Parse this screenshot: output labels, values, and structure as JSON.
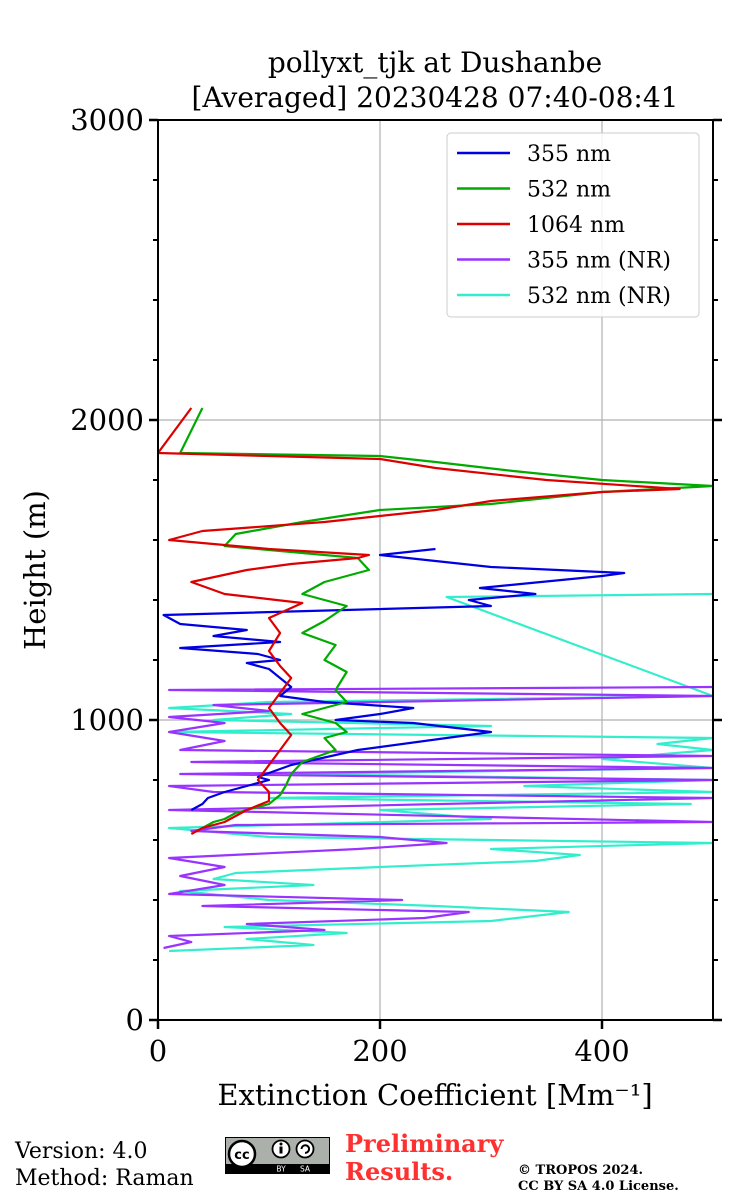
{
  "chart_data": {
    "type": "line",
    "title": [
      "pollyxt_tjk at Dushanbe",
      "[Averaged] 20230428 07:40-08:41"
    ],
    "xlabel": "Extinction Coefficient [Mm⁻¹]",
    "ylabel": "Height (m)",
    "xlim": [
      0,
      500
    ],
    "ylim": [
      0,
      3000
    ],
    "xticks": [
      "0",
      "200",
      "400"
    ],
    "yticks": [
      "0",
      "1000",
      "2000",
      "3000"
    ],
    "grid": true,
    "legend_position": "top-right",
    "series": [
      {
        "name": "355 nm",
        "color": "#0000e0",
        "points": [
          [
            30,
            700
          ],
          [
            40,
            720
          ],
          [
            45,
            740
          ],
          [
            60,
            760
          ],
          [
            80,
            780
          ],
          [
            100,
            800
          ],
          [
            90,
            810
          ],
          [
            120,
            850
          ],
          [
            180,
            900
          ],
          [
            300,
            960
          ],
          [
            230,
            990
          ],
          [
            160,
            1000
          ],
          [
            200,
            1020
          ],
          [
            230,
            1040
          ],
          [
            150,
            1060
          ],
          [
            110,
            1080
          ],
          [
            120,
            1110
          ],
          [
            110,
            1140
          ],
          [
            100,
            1170
          ],
          [
            80,
            1190
          ],
          [
            110,
            1200
          ],
          [
            90,
            1220
          ],
          [
            20,
            1240
          ],
          [
            110,
            1260
          ],
          [
            50,
            1280
          ],
          [
            80,
            1300
          ],
          [
            20,
            1320
          ],
          [
            5,
            1350
          ],
          [
            300,
            1380
          ],
          [
            280,
            1400
          ],
          [
            340,
            1420
          ],
          [
            290,
            1440
          ],
          [
            400,
            1480
          ],
          [
            420,
            1490
          ],
          [
            300,
            1510
          ],
          [
            250,
            1530
          ],
          [
            200,
            1550
          ],
          [
            250,
            1570
          ]
        ]
      },
      {
        "name": "532 nm",
        "color": "#00aa00",
        "points": [
          [
            40,
            640
          ],
          [
            50,
            660
          ],
          [
            60,
            670
          ],
          [
            70,
            690
          ],
          [
            80,
            700
          ],
          [
            100,
            720
          ],
          [
            110,
            750
          ],
          [
            115,
            780
          ],
          [
            120,
            820
          ],
          [
            130,
            860
          ],
          [
            160,
            900
          ],
          [
            150,
            940
          ],
          [
            170,
            960
          ],
          [
            160,
            990
          ],
          [
            130,
            1020
          ],
          [
            170,
            1060
          ],
          [
            160,
            1100
          ],
          [
            170,
            1160
          ],
          [
            150,
            1200
          ],
          [
            160,
            1250
          ],
          [
            130,
            1290
          ],
          [
            150,
            1330
          ],
          [
            170,
            1380
          ],
          [
            130,
            1420
          ],
          [
            150,
            1460
          ],
          [
            190,
            1500
          ],
          [
            180,
            1540
          ],
          [
            60,
            1580
          ],
          [
            70,
            1620
          ],
          [
            130,
            1660
          ],
          [
            200,
            1700
          ],
          [
            300,
            1720
          ],
          [
            400,
            1760
          ],
          [
            500,
            1780
          ],
          [
            400,
            1800
          ],
          [
            320,
            1830
          ],
          [
            250,
            1860
          ],
          [
            200,
            1880
          ],
          [
            20,
            1890
          ],
          [
            40,
            2040
          ]
        ]
      },
      {
        "name": "1064 nm",
        "color": "#dd0000",
        "points": [
          [
            30,
            620
          ],
          [
            40,
            640
          ],
          [
            60,
            660
          ],
          [
            70,
            680
          ],
          [
            80,
            700
          ],
          [
            100,
            730
          ],
          [
            100,
            760
          ],
          [
            90,
            800
          ],
          [
            100,
            850
          ],
          [
            110,
            900
          ],
          [
            120,
            950
          ],
          [
            110,
            990
          ],
          [
            100,
            1040
          ],
          [
            110,
            1090
          ],
          [
            120,
            1140
          ],
          [
            110,
            1180
          ],
          [
            100,
            1230
          ],
          [
            110,
            1290
          ],
          [
            100,
            1340
          ],
          [
            130,
            1390
          ],
          [
            60,
            1420
          ],
          [
            30,
            1460
          ],
          [
            80,
            1500
          ],
          [
            120,
            1520
          ],
          [
            180,
            1540
          ],
          [
            190,
            1550
          ],
          [
            100,
            1570
          ],
          [
            10,
            1600
          ],
          [
            40,
            1630
          ],
          [
            150,
            1660
          ],
          [
            250,
            1700
          ],
          [
            300,
            1730
          ],
          [
            400,
            1760
          ],
          [
            470,
            1770
          ],
          [
            350,
            1800
          ],
          [
            250,
            1840
          ],
          [
            200,
            1870
          ],
          [
            100,
            1880
          ],
          [
            0,
            1890
          ],
          [
            30,
            2040
          ]
        ]
      },
      {
        "name": "355 nm (NR)",
        "color": "#9933ff",
        "points": [
          [
            5,
            240
          ],
          [
            30,
            260
          ],
          [
            10,
            280
          ],
          [
            150,
            300
          ],
          [
            80,
            320
          ],
          [
            240,
            340
          ],
          [
            280,
            360
          ],
          [
            40,
            380
          ],
          [
            220,
            400
          ],
          [
            10,
            420
          ],
          [
            60,
            450
          ],
          [
            20,
            480
          ],
          [
            60,
            510
          ],
          [
            10,
            540
          ],
          [
            180,
            570
          ],
          [
            260,
            590
          ],
          [
            200,
            610
          ],
          [
            30,
            630
          ],
          [
            70,
            650
          ],
          [
            500,
            660
          ],
          [
            10,
            700
          ],
          [
            500,
            740
          ],
          [
            50,
            760
          ],
          [
            10,
            780
          ],
          [
            500,
            800
          ],
          [
            20,
            820
          ],
          [
            500,
            840
          ],
          [
            30,
            860
          ],
          [
            500,
            880
          ],
          [
            20,
            900
          ],
          [
            60,
            930
          ],
          [
            10,
            960
          ],
          [
            60,
            990
          ],
          [
            10,
            1010
          ],
          [
            100,
            1030
          ],
          [
            50,
            1050
          ],
          [
            500,
            1080
          ],
          [
            10,
            1100
          ],
          [
            500,
            1110
          ]
        ]
      },
      {
        "name": "532 nm (NR)",
        "color": "#33eecc",
        "points": [
          [
            10,
            230
          ],
          [
            140,
            250
          ],
          [
            80,
            270
          ],
          [
            170,
            290
          ],
          [
            60,
            310
          ],
          [
            300,
            330
          ],
          [
            370,
            360
          ],
          [
            250,
            380
          ],
          [
            100,
            400
          ],
          [
            20,
            430
          ],
          [
            140,
            450
          ],
          [
            50,
            470
          ],
          [
            70,
            490
          ],
          [
            200,
            510
          ],
          [
            340,
            530
          ],
          [
            380,
            550
          ],
          [
            300,
            570
          ],
          [
            500,
            590
          ],
          [
            100,
            610
          ],
          [
            10,
            640
          ],
          [
            300,
            670
          ],
          [
            200,
            700
          ],
          [
            480,
            720
          ],
          [
            100,
            740
          ],
          [
            500,
            760
          ],
          [
            330,
            780
          ],
          [
            500,
            800
          ],
          [
            120,
            820
          ],
          [
            500,
            840
          ],
          [
            400,
            870
          ],
          [
            500,
            900
          ],
          [
            450,
            920
          ],
          [
            500,
            940
          ],
          [
            10,
            960
          ],
          [
            300,
            980
          ],
          [
            50,
            1000
          ],
          [
            120,
            1020
          ],
          [
            10,
            1040
          ],
          [
            100,
            1060
          ],
          [
            500,
            1080
          ],
          [
            260,
            1410
          ],
          [
            500,
            1420
          ]
        ]
      }
    ]
  },
  "footer": {
    "version_line": "Version: 4.0",
    "method_line": "Method: Raman",
    "license_badge": [
      "cc",
      "BY",
      "SA"
    ],
    "preliminary": [
      "Preliminary",
      "Results."
    ],
    "copyright": [
      "© TROPOS 2024.",
      "CC BY SA 4.0 License."
    ]
  }
}
